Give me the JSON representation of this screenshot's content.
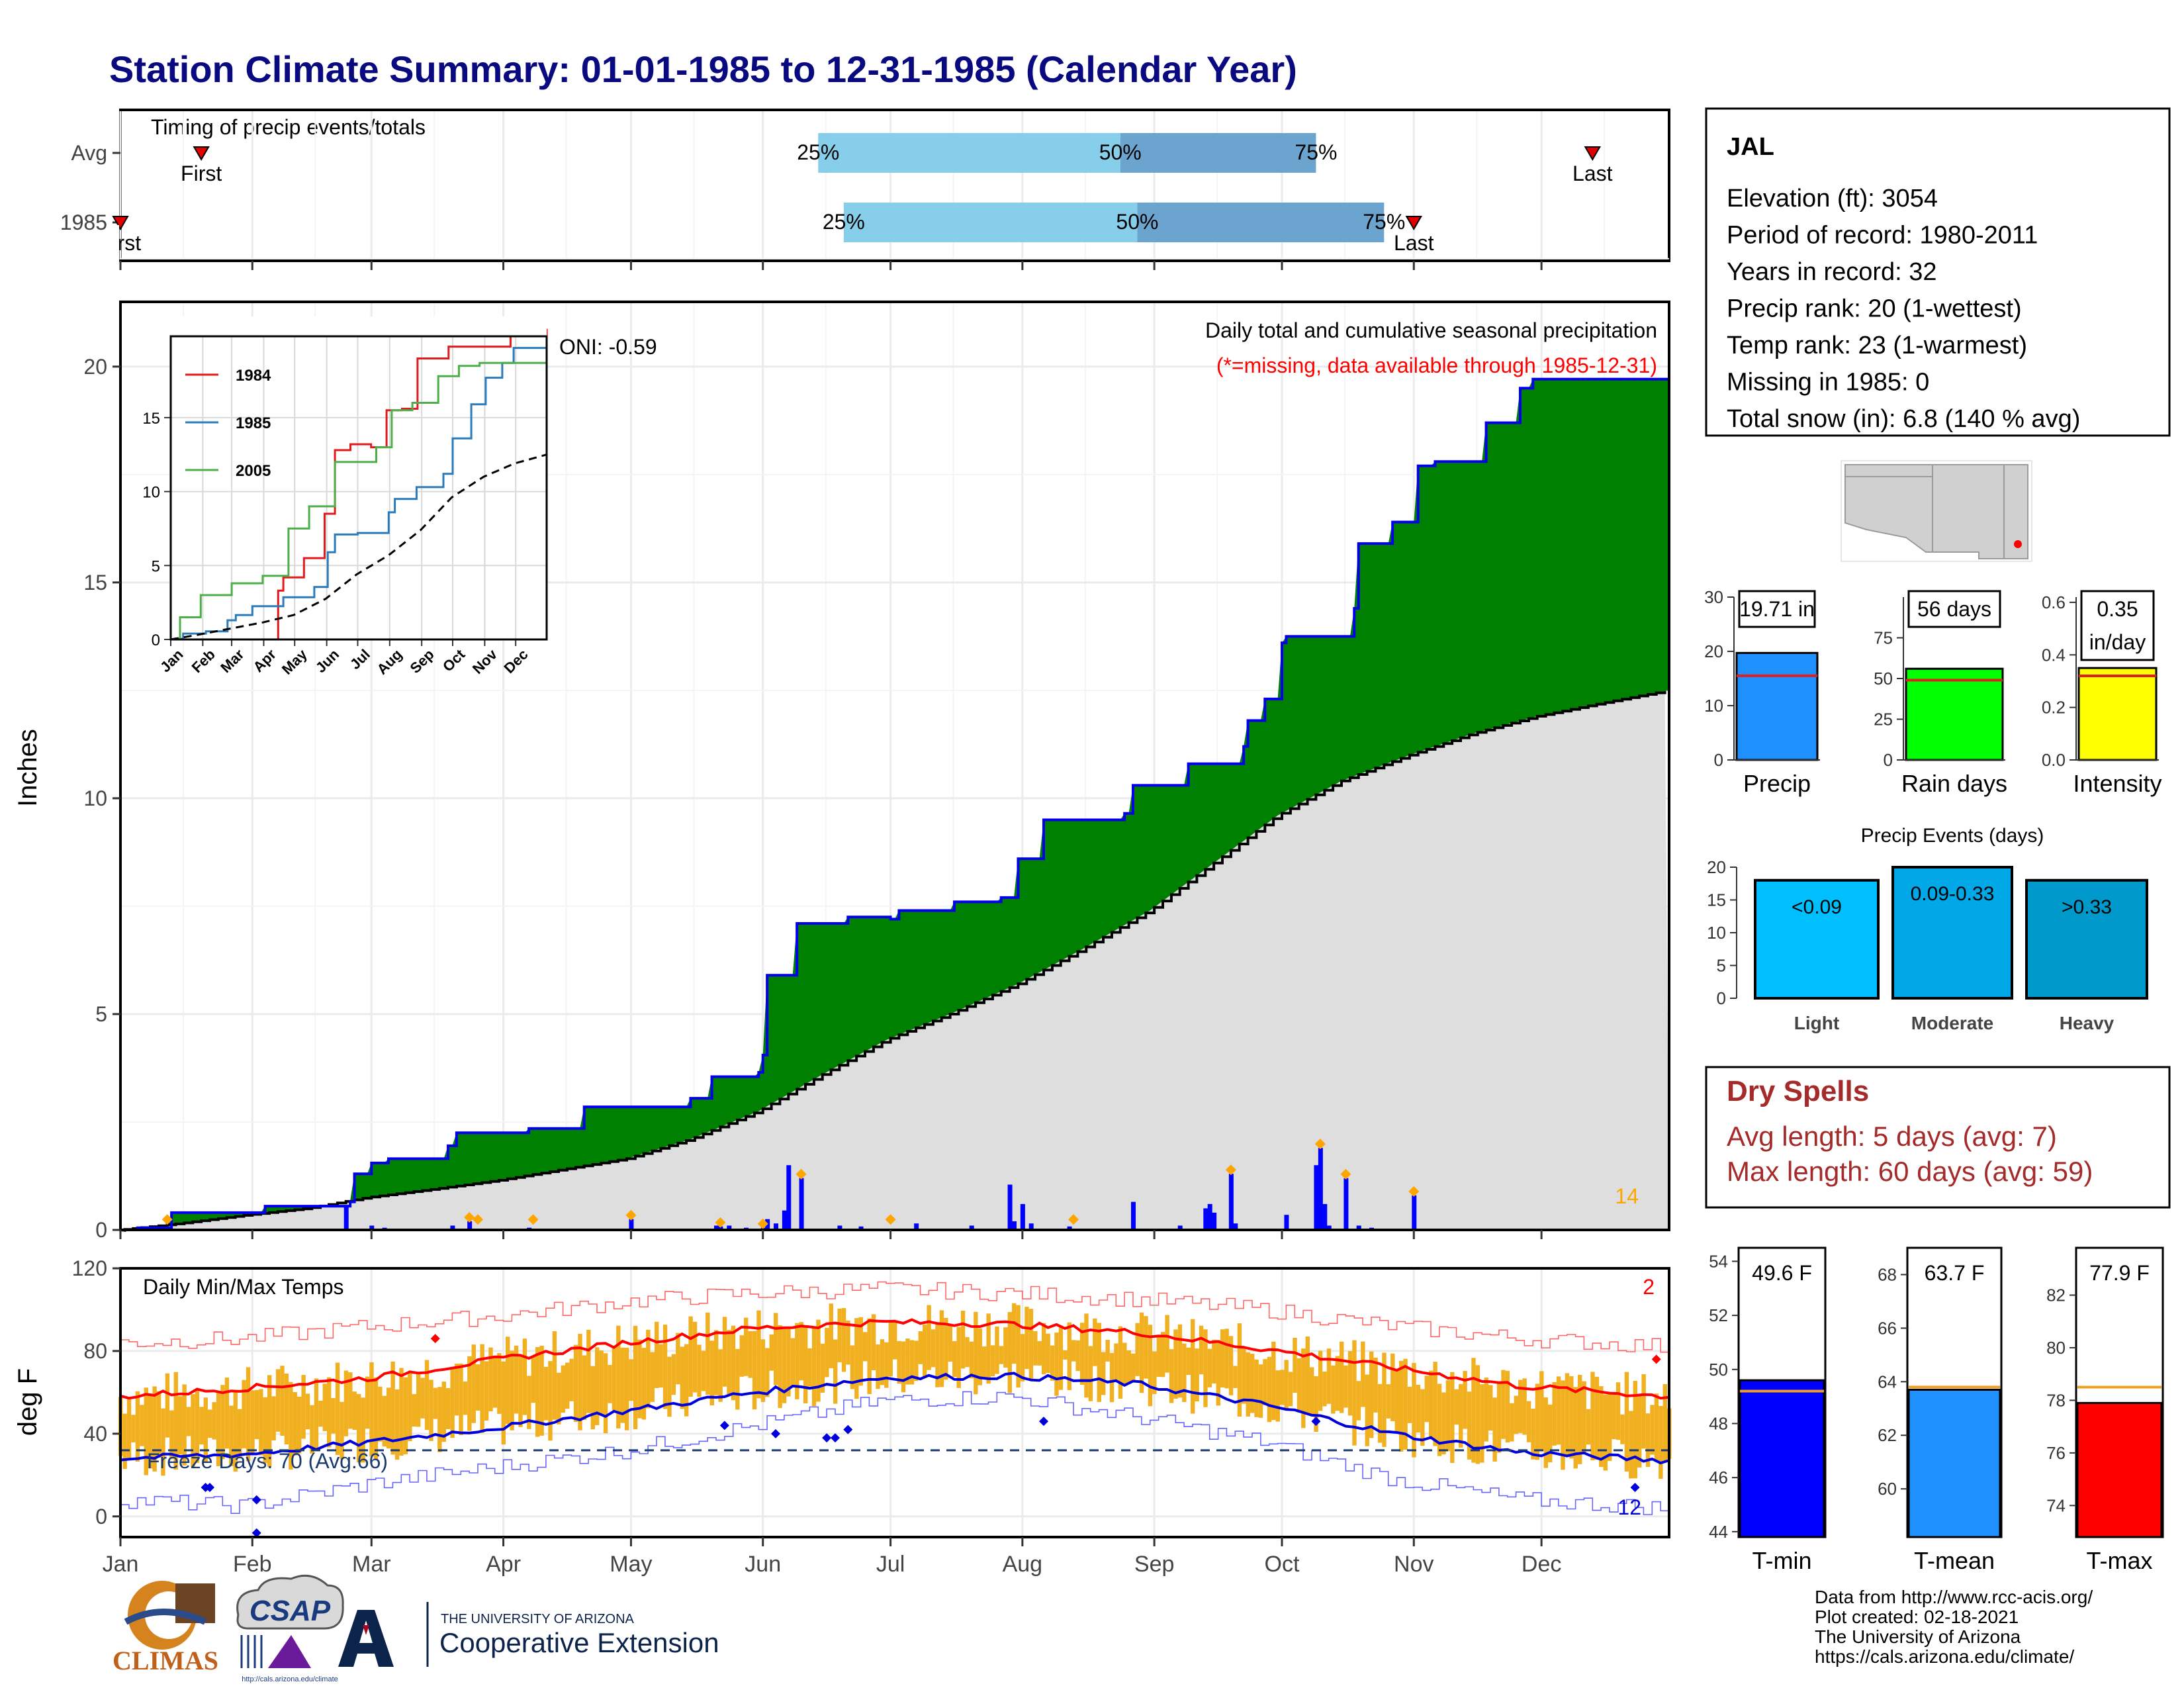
{
  "title": "Station Climate Summary: 01-01-1985 to 12-31-1985 (Calendar Year)",
  "months": [
    "Jan",
    "Feb",
    "Mar",
    "Apr",
    "May",
    "Jun",
    "Jul",
    "Aug",
    "Sep",
    "Oct",
    "Nov",
    "Dec"
  ],
  "timing": {
    "title": "Timing of precip events/totals",
    "rows": [
      {
        "label": "Avg",
        "first_doy": 20,
        "last_doy": 347,
        "p25_doy": 165,
        "p50_doy": 236,
        "p75_doy": 282,
        "first_label": "First",
        "last_label": "Last"
      },
      {
        "label": "1985",
        "first_doy": 1,
        "last_doy": 305,
        "p25_doy": 171,
        "p50_doy": 240,
        "p75_doy": 298,
        "first_label": "First",
        "last_label": "Last"
      }
    ],
    "pct_labels": [
      "25%",
      "50%",
      "75%"
    ]
  },
  "precip_panel": {
    "ylabel": "Inches",
    "ylim": [
      0,
      21.5
    ],
    "yticks": [
      0,
      5,
      10,
      15,
      20
    ],
    "title": "Daily total and cumulative seasonal precipitation",
    "subtitle": "(*=missing, data available through 1985-12-31)",
    "oni": "ONI: -0.59",
    "count_label": "14"
  },
  "inset": {
    "yticks": [
      0,
      5,
      10,
      15
    ],
    "ylim": [
      0,
      20.5
    ],
    "months": [
      "Jan",
      "Feb",
      "Mar",
      "Apr",
      "May",
      "Jun",
      "Jul",
      "Aug",
      "Sep",
      "Oct",
      "Nov",
      "Dec"
    ],
    "legend": [
      "1984",
      "1985",
      "2005"
    ]
  },
  "temp_panel": {
    "ylabel": "deg F",
    "title": "Daily Min/Max Temps",
    "yticks": [
      0,
      40,
      80,
      120
    ],
    "ylim": [
      -10,
      120
    ],
    "freeze_label": "Freeze Days: 70 (Avg:66)",
    "count_max": "2",
    "count_min": "12"
  },
  "info": {
    "station": "JAL",
    "lines": [
      "Elevation (ft): 3054",
      "Period of record: 1980-2011",
      "Years in record: 32",
      "Precip rank: 20 (1-wettest)",
      "Temp rank: 23 (1-warmest)",
      "Missing in 1985: 0",
      "Total snow (in): 6.8 (140 % avg)"
    ]
  },
  "mini_bars": [
    {
      "name": "Precip",
      "value": 19.71,
      "avg": 15.5,
      "ymax": 30,
      "ticks": [
        0,
        10,
        20,
        30
      ],
      "label": "19.71 in",
      "color": "#1e90ff"
    },
    {
      "name": "Rain days",
      "value": 56,
      "avg": 49,
      "ymax": 100,
      "ticks": [
        0,
        25,
        50,
        75
      ],
      "label": "56 days",
      "color": "#00ff00"
    },
    {
      "name": "Intensity",
      "value": 0.35,
      "avg": 0.32,
      "ymax": 0.62,
      "ticks": [
        0.0,
        0.2,
        0.4,
        0.6
      ],
      "tick_labels": [
        "0.0",
        "0.2",
        "0.4",
        "0.6"
      ],
      "label": "0.35",
      "label2": "in/day",
      "color": "#ffff00"
    }
  ],
  "precip_events": {
    "title": "Precip Events (days)",
    "ticks": [
      0,
      5,
      10,
      15,
      20
    ],
    "ymax": 20,
    "bars": [
      {
        "name": "Light",
        "value": 18,
        "label": "<0.09",
        "color": "#00bfff"
      },
      {
        "name": "Moderate",
        "value": 20,
        "label": "0.09-0.33",
        "color": "#00a8e8"
      },
      {
        "name": "Heavy",
        "value": 18,
        "label": ">0.33",
        "color": "#0099cc"
      }
    ]
  },
  "dry_spells": {
    "title": "Dry Spells",
    "lines": [
      "Avg length: 5 days (avg: 7)",
      "Max length: 60 days (avg: 59)"
    ]
  },
  "temp_bars": [
    {
      "name": "T-min",
      "value": 49.6,
      "avg": 49.2,
      "ymin": 43.8,
      "ymax": 54.5,
      "ticks": [
        44,
        46,
        48,
        50,
        52,
        54
      ],
      "label": "49.6 F",
      "color": "#0000ff"
    },
    {
      "name": "T-mean",
      "value": 63.7,
      "avg": 63.8,
      "ymin": 58.2,
      "ymax": 69.0,
      "ticks": [
        60,
        62,
        64,
        66,
        68
      ],
      "label": "63.7 F",
      "color": "#1e90ff"
    },
    {
      "name": "T-max",
      "value": 77.9,
      "avg": 78.5,
      "ymin": 72.8,
      "ymax": 83.8,
      "ticks": [
        74,
        76,
        78,
        80,
        82
      ],
      "label": "77.9 F",
      "color": "#ff0000"
    }
  ],
  "footer": {
    "lines": [
      "Data from http://www.rcc-acis.org/",
      "Plot created: 02-18-2021",
      "The University of Arizona",
      "https://cals.arizona.edu/climate/"
    ],
    "logo_climas": "CLIMAS",
    "logo_csap": "CSAP",
    "csap_url": "http://cals.arizona.edu/climate",
    "ua_top": "THE UNIVERSITY OF ARIZONA",
    "ua_bottom": "Cooperative Extension"
  },
  "chart_data": {
    "type": "area",
    "title": "Daily total and cumulative seasonal precipitation",
    "xlabel": "",
    "ylabel": "Inches",
    "ylim": [
      0,
      21.5
    ],
    "cumulative_1985_steps": [
      [
        1,
        0
      ],
      [
        5,
        0.05
      ],
      [
        13,
        0.4
      ],
      [
        35,
        0.55
      ],
      [
        55,
        0.65
      ],
      [
        56,
        1.3
      ],
      [
        60,
        1.55
      ],
      [
        64,
        1.65
      ],
      [
        78,
        1.95
      ],
      [
        80,
        2.25
      ],
      [
        97,
        2.35
      ],
      [
        110,
        2.85
      ],
      [
        135,
        3.05
      ],
      [
        140,
        3.55
      ],
      [
        151,
        3.65
      ],
      [
        152,
        4.05
      ],
      [
        153,
        5.9
      ],
      [
        160,
        7.1
      ],
      [
        172,
        7.25
      ],
      [
        182,
        7.2
      ],
      [
        184,
        7.4
      ],
      [
        197,
        7.6
      ],
      [
        208,
        7.7
      ],
      [
        212,
        8.6
      ],
      [
        218,
        9.5
      ],
      [
        237,
        9.65
      ],
      [
        239,
        10.3
      ],
      [
        252,
        10.8
      ],
      [
        265,
        11.2
      ],
      [
        266,
        11.8
      ],
      [
        270,
        12.3
      ],
      [
        274,
        13.6
      ],
      [
        275,
        13.75
      ],
      [
        291,
        14.4
      ],
      [
        292,
        15.9
      ],
      [
        300,
        16.4
      ],
      [
        306,
        17.7
      ],
      [
        310,
        17.8
      ],
      [
        322,
        18.7
      ],
      [
        330,
        19.5
      ],
      [
        333,
        19.71
      ],
      [
        365,
        19.71
      ]
    ],
    "cumulative_avg": [
      [
        1,
        0
      ],
      [
        15,
        0.15
      ],
      [
        31,
        0.35
      ],
      [
        45,
        0.5
      ],
      [
        59,
        0.75
      ],
      [
        75,
        0.95
      ],
      [
        90,
        1.15
      ],
      [
        105,
        1.4
      ],
      [
        120,
        1.65
      ],
      [
        135,
        2.1
      ],
      [
        151,
        2.75
      ],
      [
        166,
        3.6
      ],
      [
        181,
        4.4
      ],
      [
        196,
        5.0
      ],
      [
        212,
        5.7
      ],
      [
        227,
        6.5
      ],
      [
        243,
        7.4
      ],
      [
        258,
        8.5
      ],
      [
        273,
        9.6
      ],
      [
        288,
        10.4
      ],
      [
        304,
        11.0
      ],
      [
        319,
        11.5
      ],
      [
        334,
        11.9
      ],
      [
        349,
        12.2
      ],
      [
        365,
        12.5
      ]
    ],
    "daily_bars": [
      [
        54,
        0.55
      ],
      [
        60,
        0.1
      ],
      [
        63,
        0.05
      ],
      [
        79,
        0.1
      ],
      [
        83,
        0.2
      ],
      [
        97,
        0.05
      ],
      [
        121,
        0.25
      ],
      [
        141,
        0.1
      ],
      [
        142,
        0.08
      ],
      [
        144,
        0.1
      ],
      [
        148,
        0.05
      ],
      [
        152,
        0.05
      ],
      [
        153,
        0.25
      ],
      [
        155,
        0.15
      ],
      [
        157,
        0.45
      ],
      [
        158,
        1.5
      ],
      [
        161,
        1.2
      ],
      [
        170,
        0.1
      ],
      [
        175,
        0.08
      ],
      [
        188,
        0.15
      ],
      [
        201,
        0.1
      ],
      [
        210,
        1.05
      ],
      [
        211,
        0.2
      ],
      [
        213,
        0.6
      ],
      [
        215,
        0.15
      ],
      [
        224,
        0.08
      ],
      [
        239,
        0.65
      ],
      [
        250,
        0.1
      ],
      [
        256,
        0.5
      ],
      [
        257,
        0.6
      ],
      [
        258,
        0.4
      ],
      [
        262,
        1.3
      ],
      [
        263,
        0.15
      ],
      [
        275,
        0.35
      ],
      [
        282,
        1.5
      ],
      [
        283,
        1.9
      ],
      [
        284,
        0.6
      ],
      [
        285,
        0.1
      ],
      [
        289,
        1.2
      ],
      [
        292,
        0.1
      ],
      [
        295,
        0.05
      ],
      [
        305,
        0.8
      ]
    ],
    "daily_labels_doy": [
      12,
      83,
      85,
      98,
      121,
      142,
      152,
      161,
      182,
      225,
      262,
      283,
      289,
      305
    ],
    "inset_series": [
      {
        "name": "1984",
        "color": "#e31a1c",
        "points": [
          [
            1,
            0
          ],
          [
            100,
            0
          ],
          [
            105,
            3.3
          ],
          [
            110,
            4.2
          ],
          [
            130,
            5.5
          ],
          [
            150,
            8.5
          ],
          [
            160,
            12.8
          ],
          [
            175,
            13.2
          ],
          [
            195,
            13.0
          ],
          [
            210,
            15.5
          ],
          [
            225,
            15.6
          ],
          [
            240,
            19.0
          ],
          [
            270,
            19.8
          ],
          [
            300,
            19.8
          ],
          [
            330,
            20.5
          ],
          [
            365,
            21.0
          ]
        ]
      },
      {
        "name": "1985",
        "color": "#2b7bba",
        "points": [
          [
            1,
            0
          ],
          [
            5,
            0.05
          ],
          [
            13,
            0.4
          ],
          [
            35,
            0.55
          ],
          [
            56,
            1.3
          ],
          [
            64,
            1.65
          ],
          [
            80,
            2.25
          ],
          [
            110,
            2.85
          ],
          [
            140,
            3.55
          ],
          [
            153,
            5.9
          ],
          [
            160,
            7.1
          ],
          [
            182,
            7.2
          ],
          [
            212,
            8.6
          ],
          [
            218,
            9.5
          ],
          [
            239,
            10.3
          ],
          [
            265,
            11.2
          ],
          [
            274,
            13.6
          ],
          [
            292,
            15.9
          ],
          [
            306,
            17.7
          ],
          [
            322,
            18.7
          ],
          [
            333,
            19.71
          ],
          [
            365,
            19.71
          ]
        ]
      },
      {
        "name": "2005",
        "color": "#4daf4a",
        "points": [
          [
            1,
            0
          ],
          [
            10,
            1.5
          ],
          [
            30,
            3.0
          ],
          [
            60,
            3.8
          ],
          [
            90,
            4.3
          ],
          [
            115,
            7.5
          ],
          [
            135,
            9.0
          ],
          [
            160,
            12.0
          ],
          [
            200,
            13.0
          ],
          [
            215,
            15.5
          ],
          [
            235,
            16.0
          ],
          [
            260,
            17.8
          ],
          [
            280,
            18.5
          ],
          [
            300,
            18.7
          ],
          [
            330,
            18.7
          ],
          [
            365,
            18.7
          ]
        ]
      },
      {
        "name": "Avg",
        "color": "#000000",
        "points": [
          [
            1,
            0
          ],
          [
            30,
            0.35
          ],
          [
            60,
            0.75
          ],
          [
            90,
            1.15
          ],
          [
            120,
            1.65
          ],
          [
            151,
            2.75
          ],
          [
            181,
            4.4
          ],
          [
            212,
            5.7
          ],
          [
            243,
            7.4
          ],
          [
            273,
            9.6
          ],
          [
            304,
            11.0
          ],
          [
            334,
            11.9
          ],
          [
            365,
            12.5
          ]
        ]
      }
    ],
    "temp_tmax_avg": [
      [
        1,
        58
      ],
      [
        30,
        62
      ],
      [
        60,
        67
      ],
      [
        90,
        76
      ],
      [
        120,
        84
      ],
      [
        150,
        91
      ],
      [
        180,
        94
      ],
      [
        210,
        93
      ],
      [
        240,
        89
      ],
      [
        270,
        81
      ],
      [
        300,
        72
      ],
      [
        330,
        63
      ],
      [
        365,
        58
      ]
    ],
    "temp_tmin_avg": [
      [
        1,
        28
      ],
      [
        30,
        30
      ],
      [
        60,
        36
      ],
      [
        90,
        43
      ],
      [
        120,
        51
      ],
      [
        150,
        60
      ],
      [
        180,
        67
      ],
      [
        210,
        68
      ],
      [
        240,
        64
      ],
      [
        270,
        54
      ],
      [
        300,
        40
      ],
      [
        330,
        31
      ],
      [
        365,
        27
      ]
    ],
    "temp_record_high": [
      [
        1,
        84
      ],
      [
        30,
        86
      ],
      [
        60,
        92
      ],
      [
        90,
        97
      ],
      [
        120,
        104
      ],
      [
        150,
        108
      ],
      [
        180,
        110
      ],
      [
        210,
        108
      ],
      [
        240,
        105
      ],
      [
        270,
        100
      ],
      [
        300,
        92
      ],
      [
        330,
        86
      ],
      [
        365,
        82
      ]
    ],
    "temp_record_low": [
      [
        1,
        8
      ],
      [
        30,
        5
      ],
      [
        60,
        16
      ],
      [
        90,
        24
      ],
      [
        120,
        32
      ],
      [
        150,
        44
      ],
      [
        180,
        56
      ],
      [
        210,
        58
      ],
      [
        240,
        48
      ],
      [
        270,
        36
      ],
      [
        300,
        18
      ],
      [
        330,
        8
      ],
      [
        365,
        4
      ]
    ],
    "freeze_line": 32,
    "temp_ylim": [
      -10,
      120
    ]
  }
}
